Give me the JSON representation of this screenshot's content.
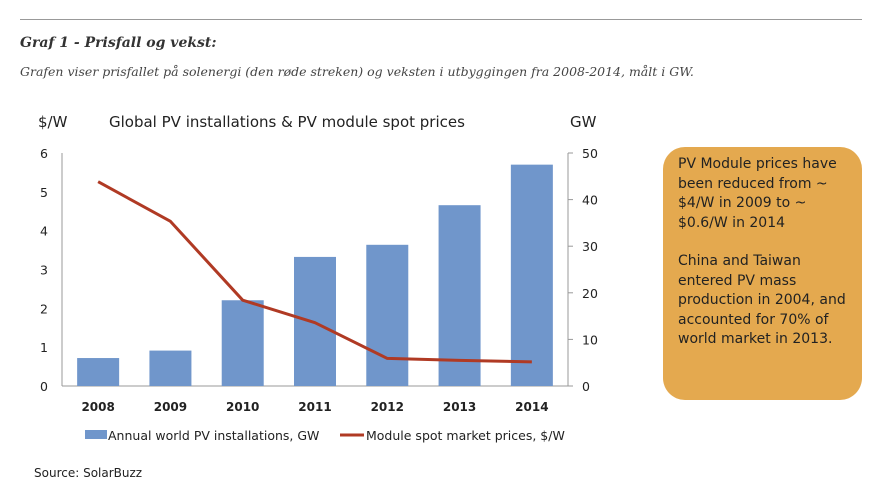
{
  "header": {
    "heading": "Graf 1 - Prisfall og vekst:",
    "subtitle": "Grafen viser prisfallet på solenergi (den røde streken) og veksten i utbyggingen fra 2008-2014, målt i GW."
  },
  "chart_data": {
    "type": "bar+line",
    "title": "Global PV installations & PV module spot prices",
    "left_axis_label": "$/W",
    "right_axis_label": "GW",
    "categories": [
      "2008",
      "2009",
      "2010",
      "2011",
      "2012",
      "2013",
      "2014"
    ],
    "left_ylim": [
      0,
      6
    ],
    "left_ticks": [
      "0",
      "1",
      "2",
      "3",
      "4",
      "5",
      "6"
    ],
    "right_ylim": [
      0,
      50
    ],
    "right_ticks": [
      "0",
      "10",
      "20",
      "30",
      "40",
      "50"
    ],
    "series": [
      {
        "name": "Annual world PV installations, GW",
        "type": "bar",
        "axis": "right",
        "color": "#7096CB",
        "values": [
          6.0,
          7.6,
          18.4,
          27.7,
          30.3,
          38.8,
          47.5
        ]
      },
      {
        "name": "Module spot market prices, $/W",
        "type": "line",
        "axis": "left",
        "color": "#B03A24",
        "values": [
          5.26,
          4.24,
          2.21,
          1.63,
          0.71,
          0.66,
          0.62
        ]
      }
    ],
    "grid": false,
    "legend_position": "bottom"
  },
  "note": {
    "paragraph1": "PV Module prices have been reduced from ~ $4/W in 2009 to ~ $0.6/W in 2014",
    "paragraph2": "China and Taiwan entered PV mass production in 2004, and accounted for 70% of world market in 2013.",
    "background": "#E4A94F"
  },
  "source": "Source: SolarBuzz"
}
